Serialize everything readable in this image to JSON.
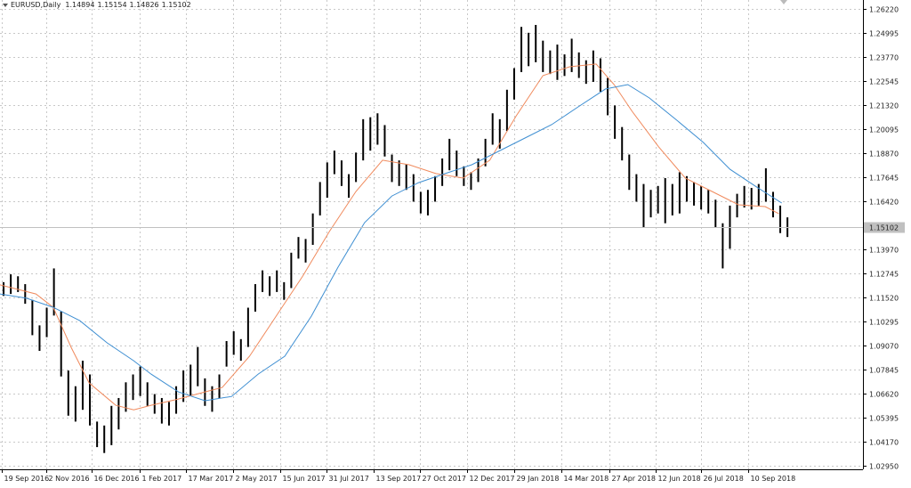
{
  "chart_data": {
    "type": "ohlc",
    "title": "EURUSD,Daily",
    "quote": [
      1.14894,
      1.15154,
      1.14826,
      1.15102
    ],
    "last_price": 1.15102,
    "bar_color": "#000000",
    "grid": true,
    "xlim": [
      0,
      120
    ],
    "ylim": [
      1.0277,
      1.2667
    ],
    "xticks": [
      {
        "value": 0.3,
        "label": "19 Sep 2016"
      },
      {
        "value": 6.4,
        "label": "2 Nov 2016"
      },
      {
        "value": 12.7,
        "label": "16 Dec 2016"
      },
      {
        "value": 19.4,
        "label": "1 Feb 2017"
      },
      {
        "value": 25.9,
        "label": "17 Mar 2017"
      },
      {
        "value": 32.4,
        "label": "2 May 2017"
      },
      {
        "value": 39.0,
        "label": "15 Jun 2017"
      },
      {
        "value": 45.4,
        "label": "31 Jul 2017"
      },
      {
        "value": 52.0,
        "label": "13 Sep 2017"
      },
      {
        "value": 58.4,
        "label": "27 Oct 2017"
      },
      {
        "value": 64.9,
        "label": "12 Dec 2017"
      },
      {
        "value": 71.5,
        "label": "29 Jan 2018"
      },
      {
        "value": 78.0,
        "label": "14 Mar 2018"
      },
      {
        "value": 84.7,
        "label": "27 Apr 2018"
      },
      {
        "value": 91.2,
        "label": "12 Jun 2018"
      },
      {
        "value": 97.5,
        "label": "26 Jul 2018"
      },
      {
        "value": 104.0,
        "label": "10 Sep 2018"
      }
    ],
    "yticks": [
      {
        "value": 1.2622,
        "label": "1.26220"
      },
      1.24995,
      {
        "value": 1.2377,
        "label": "1.23770"
      },
      1.22545,
      {
        "value": 1.2132,
        "label": "1.21320"
      },
      1.20095,
      {
        "value": 1.1887,
        "label": "1.18870"
      },
      1.17645,
      {
        "value": 1.1642,
        "label": "1.16420"
      },
      {
        "value": 1.1397,
        "label": "1.13970"
      },
      1.12745,
      {
        "value": 1.1152,
        "label": "1.11520"
      },
      1.10295,
      {
        "value": 1.0907,
        "label": "1.09070"
      },
      1.07845,
      {
        "value": 1.0662,
        "label": "1.06620"
      },
      1.05395,
      {
        "value": 1.0417,
        "label": "1.04170"
      },
      {
        "value": 1.0295,
        "label": "1.02950"
      }
    ],
    "high": [
      1.123,
      1.127,
      1.126,
      1.122,
      1.114,
      1.101,
      1.11,
      1.13,
      1.108,
      1.078,
      1.07,
      1.083,
      1.076,
      1.052,
      1.05,
      1.06,
      1.064,
      1.072,
      1.076,
      1.08,
      1.072,
      1.066,
      1.064,
      1.062,
      1.07,
      1.078,
      1.081,
      1.09,
      1.074,
      1.07,
      1.076,
      1.093,
      1.098,
      1.094,
      1.11,
      1.122,
      1.129,
      1.126,
      1.129,
      1.123,
      1.138,
      1.146,
      1.145,
      1.158,
      1.174,
      1.184,
      1.19,
      1.185,
      1.178,
      1.189,
      1.206,
      1.207,
      1.209,
      1.203,
      1.188,
      1.185,
      1.183,
      1.178,
      1.169,
      1.17,
      1.177,
      1.186,
      1.196,
      1.19,
      1.182,
      1.179,
      1.186,
      1.196,
      1.209,
      1.206,
      1.221,
      1.232,
      1.253,
      1.25,
      1.254,
      1.246,
      1.241,
      1.244,
      1.239,
      1.247,
      1.24,
      1.236,
      1.241,
      1.237,
      1.227,
      1.213,
      1.202,
      1.188,
      1.178,
      1.173,
      1.17,
      1.172,
      1.176,
      1.173,
      1.179,
      1.177,
      1.174,
      1.172,
      1.17,
      1.165,
      1.153,
      1.162,
      1.168,
      1.172,
      1.171,
      1.173,
      1.181,
      1.169,
      1.162,
      1.156
    ],
    "low": [
      1.116,
      1.117,
      1.118,
      1.112,
      1.096,
      1.088,
      1.095,
      1.106,
      1.075,
      1.055,
      1.052,
      1.058,
      1.05,
      1.039,
      1.036,
      1.04,
      1.048,
      1.057,
      1.063,
      1.065,
      1.06,
      1.056,
      1.051,
      1.05,
      1.056,
      1.062,
      1.065,
      1.07,
      1.06,
      1.057,
      1.064,
      1.08,
      1.086,
      1.083,
      1.09,
      1.108,
      1.118,
      1.116,
      1.118,
      1.114,
      1.12,
      1.135,
      1.133,
      1.142,
      1.157,
      1.166,
      1.178,
      1.172,
      1.166,
      1.174,
      1.185,
      1.19,
      1.193,
      1.187,
      1.174,
      1.172,
      1.17,
      1.164,
      1.158,
      1.157,
      1.164,
      1.172,
      1.18,
      1.177,
      1.172,
      1.17,
      1.174,
      1.182,
      1.193,
      1.191,
      1.2,
      1.216,
      1.23,
      1.233,
      1.235,
      1.23,
      1.229,
      1.226,
      1.228,
      1.23,
      1.227,
      1.224,
      1.225,
      1.22,
      1.208,
      1.196,
      1.185,
      1.17,
      1.164,
      1.151,
      1.156,
      1.158,
      1.153,
      1.157,
      1.158,
      1.164,
      1.162,
      1.16,
      1.158,
      1.151,
      1.13,
      1.14,
      1.156,
      1.161,
      1.16,
      1.162,
      1.164,
      1.156,
      1.148,
      1.146
    ],
    "series": [
      {
        "color": "#f08a5d",
        "x": [
          0,
          5,
          7.4,
          9.9,
          12.4,
          16.1,
          18.6,
          21.0,
          24.8,
          28.5,
          30.9,
          34.7,
          38.4,
          42.1,
          45.8,
          49.5,
          53.2,
          56.9,
          60.6,
          64.4,
          68.1,
          71.8,
          75.5,
          79.2,
          82.9,
          85.4,
          87.9,
          91.6,
          95.3,
          99.0,
          102.7,
          106.4,
          108.3
        ],
        "values": [
          1.1216,
          1.117,
          1.1102,
          1.0898,
          1.0717,
          1.0603,
          1.058,
          1.0603,
          1.0635,
          1.0671,
          1.0694,
          1.0853,
          1.1057,
          1.1261,
          1.1488,
          1.1692,
          1.1851,
          1.1828,
          1.1783,
          1.176,
          1.1851,
          1.2078,
          1.2282,
          1.2327,
          1.2341,
          1.2236,
          1.21,
          1.1919,
          1.176,
          1.1692,
          1.1624,
          1.1615,
          1.1579
        ]
      },
      {
        "color": "#3f8fd2",
        "x": [
          0,
          3.7,
          7.4,
          11.1,
          14.9,
          18.6,
          21.0,
          24.8,
          28.5,
          32.2,
          35.9,
          39.6,
          43.3,
          47.0,
          50.7,
          54.5,
          58.2,
          61.9,
          65.6,
          69.3,
          73.0,
          76.7,
          80.4,
          84.2,
          87.3,
          90.3,
          94.1,
          97.8,
          101.5,
          105.2,
          108.7
        ],
        "values": [
          1.117,
          1.1148,
          1.1102,
          1.1034,
          1.0921,
          1.083,
          1.0762,
          1.0671,
          1.0626,
          1.0648,
          1.0762,
          1.0853,
          1.1057,
          1.1306,
          1.1533,
          1.1669,
          1.1737,
          1.1783,
          1.1828,
          1.1896,
          1.1964,
          1.2032,
          1.2123,
          1.2214,
          1.2236,
          1.2168,
          1.2055,
          1.1942,
          1.1805,
          1.1715,
          1.1633
        ]
      }
    ]
  }
}
